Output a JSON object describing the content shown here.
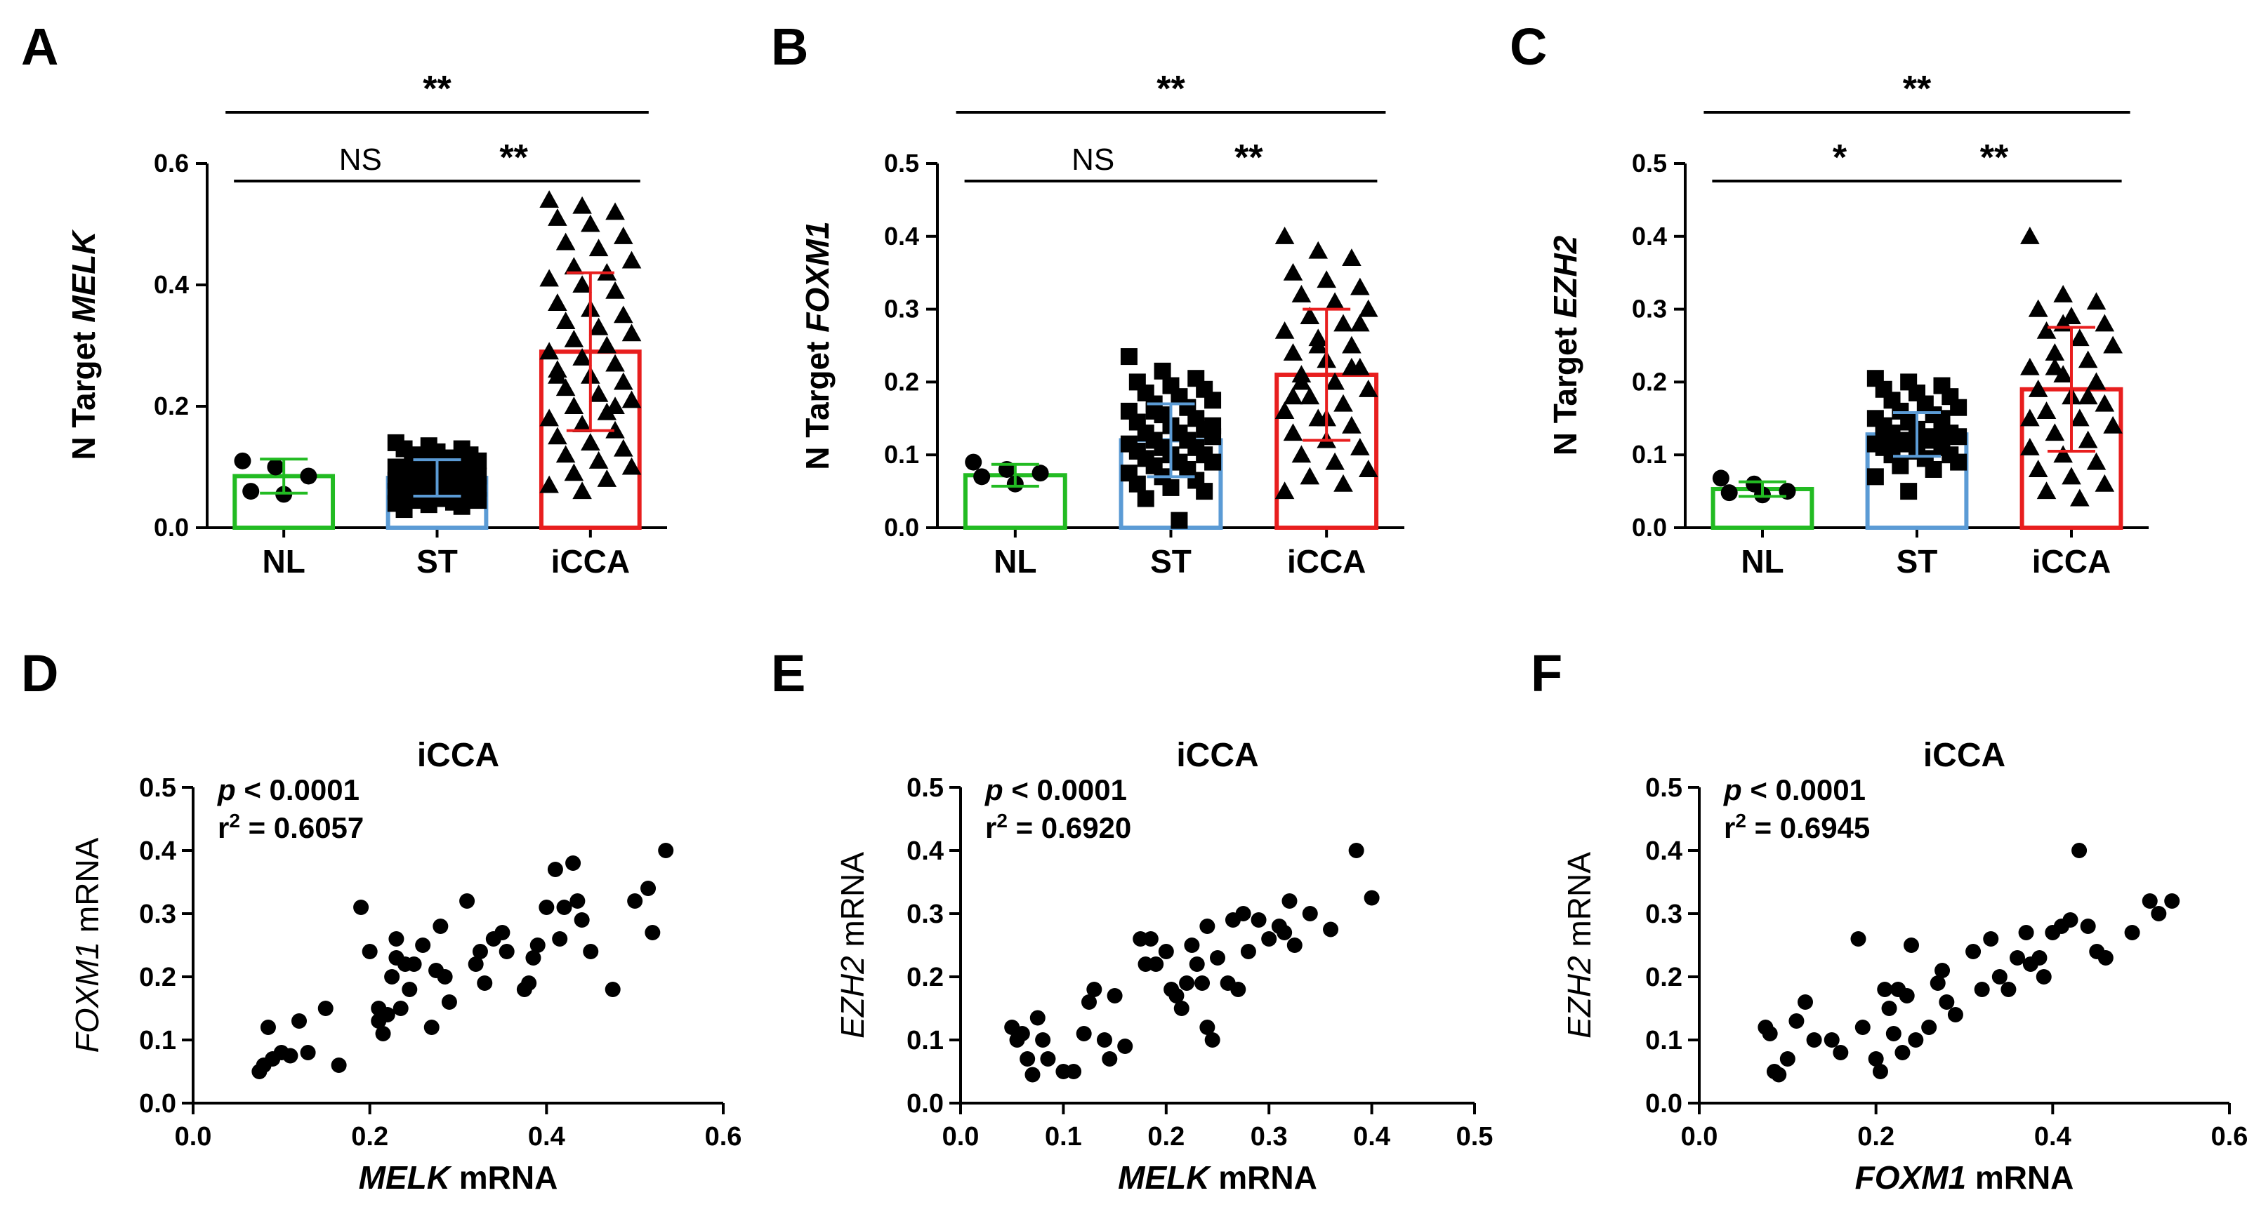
{
  "colors": {
    "NL": "#22bb22",
    "ST": "#5b9bd5",
    "iCCA": "#e81e1e",
    "ink": "#000000"
  },
  "chart_data": [
    {
      "id": "A",
      "type": "bar",
      "panel_label": "A",
      "ylabel": "N Target ",
      "ylabel_gene": "MELK",
      "categories": [
        "NL",
        "ST",
        "iCCA"
      ],
      "ylim": [
        0,
        0.6
      ],
      "yticks": [
        0.0,
        0.2,
        0.4,
        0.6
      ],
      "ytick_labels": [
        "0.0",
        "0.2",
        "0.4",
        "0.6"
      ],
      "means": [
        0.085,
        0.082,
        0.29
      ],
      "sd": [
        0.028,
        0.03,
        0.13
      ],
      "points": [
        [
          0.11,
          0.1,
          0.085,
          0.06,
          0.055
        ],
        [
          0.14,
          0.135,
          0.13,
          0.13,
          0.125,
          0.12,
          0.12,
          0.115,
          0.11,
          0.11,
          0.105,
          0.1,
          0.1,
          0.095,
          0.095,
          0.09,
          0.09,
          0.088,
          0.085,
          0.085,
          0.082,
          0.08,
          0.078,
          0.075,
          0.075,
          0.072,
          0.07,
          0.07,
          0.068,
          0.065,
          0.065,
          0.062,
          0.06,
          0.06,
          0.058,
          0.055,
          0.055,
          0.052,
          0.05,
          0.05,
          0.048,
          0.045,
          0.045,
          0.042,
          0.04,
          0.038,
          0.035,
          0.03
        ],
        [
          0.54,
          0.53,
          0.52,
          0.51,
          0.5,
          0.48,
          0.47,
          0.46,
          0.44,
          0.43,
          0.42,
          0.41,
          0.4,
          0.39,
          0.37,
          0.36,
          0.35,
          0.34,
          0.33,
          0.32,
          0.31,
          0.3,
          0.29,
          0.28,
          0.27,
          0.26,
          0.25,
          0.24,
          0.23,
          0.22,
          0.21,
          0.2,
          0.19,
          0.18,
          0.17,
          0.16,
          0.15,
          0.14,
          0.13,
          0.12,
          0.11,
          0.1,
          0.09,
          0.08,
          0.07,
          0.06,
          0.2,
          0.25
        ]
      ],
      "markers": [
        "circle",
        "square",
        "triangle"
      ],
      "brackets": [
        {
          "from": 0,
          "to": 1,
          "label": "NS",
          "level": 1
        },
        {
          "from": 1,
          "to": 2,
          "label": "**",
          "level": 1
        },
        {
          "from": 0,
          "to": 2,
          "label": "**",
          "level": 2
        }
      ]
    },
    {
      "id": "B",
      "type": "bar",
      "panel_label": "B",
      "ylabel": "N Target ",
      "ylabel_gene": "FOXM1",
      "categories": [
        "NL",
        "ST",
        "iCCA"
      ],
      "ylim": [
        0,
        0.5
      ],
      "yticks": [
        0.0,
        0.1,
        0.2,
        0.3,
        0.4,
        0.5
      ],
      "ytick_labels": [
        "0.0",
        "0.1",
        "0.2",
        "0.3",
        "0.4",
        "0.5"
      ],
      "means": [
        0.072,
        0.12,
        0.21
      ],
      "sd": [
        0.015,
        0.05,
        0.09
      ],
      "points": [
        [
          0.09,
          0.08,
          0.075,
          0.07,
          0.06
        ],
        [
          0.235,
          0.215,
          0.205,
          0.2,
          0.195,
          0.19,
          0.185,
          0.18,
          0.175,
          0.17,
          0.165,
          0.16,
          0.155,
          0.15,
          0.145,
          0.14,
          0.135,
          0.13,
          0.13,
          0.125,
          0.12,
          0.12,
          0.115,
          0.11,
          0.11,
          0.105,
          0.1,
          0.1,
          0.095,
          0.09,
          0.09,
          0.085,
          0.08,
          0.075,
          0.07,
          0.065,
          0.06,
          0.055,
          0.05,
          0.04,
          0.01,
          0.14,
          0.16
        ],
        [
          0.4,
          0.38,
          0.37,
          0.35,
          0.34,
          0.33,
          0.32,
          0.31,
          0.3,
          0.29,
          0.28,
          0.27,
          0.26,
          0.25,
          0.24,
          0.23,
          0.22,
          0.21,
          0.2,
          0.19,
          0.18,
          0.17,
          0.16,
          0.15,
          0.14,
          0.13,
          0.12,
          0.11,
          0.1,
          0.09,
          0.08,
          0.07,
          0.06,
          0.05,
          0.25,
          0.22,
          0.18,
          0.15,
          0.28,
          0.2
        ]
      ],
      "markers": [
        "circle",
        "square",
        "triangle"
      ],
      "brackets": [
        {
          "from": 0,
          "to": 1,
          "label": "NS",
          "level": 1
        },
        {
          "from": 1,
          "to": 2,
          "label": "**",
          "level": 1
        },
        {
          "from": 0,
          "to": 2,
          "label": "**",
          "level": 2
        }
      ]
    },
    {
      "id": "C",
      "type": "bar",
      "panel_label": "C",
      "ylabel": "N Target ",
      "ylabel_gene": "EZH2",
      "categories": [
        "NL",
        "ST",
        "iCCA"
      ],
      "ylim": [
        0,
        0.5
      ],
      "yticks": [
        0.0,
        0.1,
        0.2,
        0.3,
        0.4,
        0.5
      ],
      "ytick_labels": [
        "0.0",
        "0.1",
        "0.2",
        "0.3",
        "0.4",
        "0.5"
      ],
      "means": [
        0.053,
        0.128,
        0.19
      ],
      "sd": [
        0.01,
        0.03,
        0.085
      ],
      "points": [
        [
          0.068,
          0.06,
          0.05,
          0.048,
          0.045
        ],
        [
          0.205,
          0.2,
          0.195,
          0.19,
          0.185,
          0.18,
          0.175,
          0.17,
          0.165,
          0.16,
          0.155,
          0.15,
          0.145,
          0.14,
          0.14,
          0.135,
          0.13,
          0.13,
          0.125,
          0.125,
          0.12,
          0.12,
          0.115,
          0.115,
          0.11,
          0.11,
          0.105,
          0.1,
          0.1,
          0.095,
          0.09,
          0.085,
          0.08,
          0.07,
          0.05,
          0.15,
          0.13
        ],
        [
          0.4,
          0.32,
          0.31,
          0.3,
          0.29,
          0.28,
          0.27,
          0.26,
          0.25,
          0.24,
          0.23,
          0.22,
          0.21,
          0.2,
          0.19,
          0.18,
          0.17,
          0.16,
          0.15,
          0.14,
          0.13,
          0.12,
          0.11,
          0.1,
          0.09,
          0.08,
          0.07,
          0.06,
          0.05,
          0.04,
          0.25,
          0.22,
          0.18,
          0.15,
          0.28,
          0.2,
          0.3
        ]
      ],
      "markers": [
        "circle",
        "square",
        "triangle"
      ],
      "brackets": [
        {
          "from": 0,
          "to": 1,
          "label": "*",
          "level": 1
        },
        {
          "from": 1,
          "to": 2,
          "label": "**",
          "level": 1
        },
        {
          "from": 0,
          "to": 2,
          "label": "**",
          "level": 2
        }
      ]
    },
    {
      "id": "D",
      "type": "scatter",
      "panel_label": "D",
      "title": "iCCA",
      "stat_p_letter": "p",
      "stat_p_rest": " < 0.0001",
      "stat_r_base": "r",
      "stat_r_sup": "2",
      "stat_r_rest": " = 0.6057",
      "xlabel_gene": "MELK",
      "xlabel_rest": " mRNA",
      "ylabel_gene": "FOXM1",
      "ylabel_rest": " mRNA",
      "xlim": [
        0,
        0.6
      ],
      "ylim": [
        0,
        0.5
      ],
      "xticks": [
        0.0,
        0.2,
        0.4,
        0.6
      ],
      "xtick_labels": [
        "0.0",
        "0.2",
        "0.4",
        "0.6"
      ],
      "yticks": [
        0.0,
        0.1,
        0.2,
        0.3,
        0.4,
        0.5
      ],
      "ytick_labels": [
        "0.0",
        "0.1",
        "0.2",
        "0.3",
        "0.4",
        "0.5"
      ],
      "points": [
        [
          0.075,
          0.05
        ],
        [
          0.08,
          0.06
        ],
        [
          0.09,
          0.07
        ],
        [
          0.085,
          0.12
        ],
        [
          0.1,
          0.08
        ],
        [
          0.11,
          0.075
        ],
        [
          0.12,
          0.13
        ],
        [
          0.13,
          0.08
        ],
        [
          0.15,
          0.15
        ],
        [
          0.165,
          0.06
        ],
        [
          0.19,
          0.31
        ],
        [
          0.2,
          0.24
        ],
        [
          0.21,
          0.15
        ],
        [
          0.21,
          0.13
        ],
        [
          0.215,
          0.11
        ],
        [
          0.22,
          0.14
        ],
        [
          0.225,
          0.2
        ],
        [
          0.23,
          0.26
        ],
        [
          0.23,
          0.23
        ],
        [
          0.235,
          0.15
        ],
        [
          0.24,
          0.22
        ],
        [
          0.245,
          0.18
        ],
        [
          0.25,
          0.22
        ],
        [
          0.26,
          0.25
        ],
        [
          0.27,
          0.12
        ],
        [
          0.275,
          0.21
        ],
        [
          0.28,
          0.28
        ],
        [
          0.285,
          0.2
        ],
        [
          0.29,
          0.16
        ],
        [
          0.31,
          0.32
        ],
        [
          0.32,
          0.22
        ],
        [
          0.325,
          0.24
        ],
        [
          0.33,
          0.19
        ],
        [
          0.34,
          0.26
        ],
        [
          0.35,
          0.27
        ],
        [
          0.355,
          0.24
        ],
        [
          0.375,
          0.18
        ],
        [
          0.38,
          0.19
        ],
        [
          0.385,
          0.23
        ],
        [
          0.39,
          0.25
        ],
        [
          0.4,
          0.31
        ],
        [
          0.41,
          0.37
        ],
        [
          0.415,
          0.26
        ],
        [
          0.42,
          0.31
        ],
        [
          0.43,
          0.38
        ],
        [
          0.435,
          0.32
        ],
        [
          0.44,
          0.29
        ],
        [
          0.45,
          0.24
        ],
        [
          0.475,
          0.18
        ],
        [
          0.5,
          0.32
        ],
        [
          0.515,
          0.34
        ],
        [
          0.52,
          0.27
        ],
        [
          0.535,
          0.4
        ]
      ]
    },
    {
      "id": "E",
      "type": "scatter",
      "panel_label": "E",
      "title": "iCCA",
      "stat_p_letter": "p",
      "stat_p_rest": " < 0.0001",
      "stat_r_base": "r",
      "stat_r_sup": "2",
      "stat_r_rest": " = 0.6920",
      "xlabel_gene": "MELK",
      "xlabel_rest": " mRNA",
      "ylabel_gene": "EZH2",
      "ylabel_rest": " mRNA",
      "xlim": [
        0,
        0.5
      ],
      "ylim": [
        0,
        0.5
      ],
      "xticks": [
        0.0,
        0.1,
        0.2,
        0.3,
        0.4,
        0.5
      ],
      "xtick_labels": [
        "0.0",
        "0.1",
        "0.2",
        "0.3",
        "0.4",
        "0.5"
      ],
      "yticks": [
        0.0,
        0.1,
        0.2,
        0.3,
        0.4,
        0.5
      ],
      "ytick_labels": [
        "0.0",
        "0.1",
        "0.2",
        "0.3",
        "0.4",
        "0.5"
      ],
      "points": [
        [
          0.05,
          0.12
        ],
        [
          0.055,
          0.1
        ],
        [
          0.06,
          0.11
        ],
        [
          0.065,
          0.07
        ],
        [
          0.07,
          0.045
        ],
        [
          0.075,
          0.135
        ],
        [
          0.08,
          0.1
        ],
        [
          0.085,
          0.07
        ],
        [
          0.1,
          0.05
        ],
        [
          0.11,
          0.05
        ],
        [
          0.12,
          0.11
        ],
        [
          0.125,
          0.16
        ],
        [
          0.13,
          0.18
        ],
        [
          0.14,
          0.1
        ],
        [
          0.145,
          0.07
        ],
        [
          0.15,
          0.17
        ],
        [
          0.16,
          0.09
        ],
        [
          0.175,
          0.26
        ],
        [
          0.18,
          0.22
        ],
        [
          0.185,
          0.26
        ],
        [
          0.19,
          0.22
        ],
        [
          0.2,
          0.24
        ],
        [
          0.205,
          0.18
        ],
        [
          0.21,
          0.17
        ],
        [
          0.215,
          0.15
        ],
        [
          0.22,
          0.19
        ],
        [
          0.225,
          0.25
        ],
        [
          0.23,
          0.22
        ],
        [
          0.235,
          0.19
        ],
        [
          0.24,
          0.12
        ],
        [
          0.24,
          0.28
        ],
        [
          0.245,
          0.1
        ],
        [
          0.25,
          0.23
        ],
        [
          0.26,
          0.19
        ],
        [
          0.265,
          0.29
        ],
        [
          0.27,
          0.18
        ],
        [
          0.275,
          0.3
        ],
        [
          0.28,
          0.24
        ],
        [
          0.29,
          0.29
        ],
        [
          0.3,
          0.26
        ],
        [
          0.31,
          0.28
        ],
        [
          0.315,
          0.27
        ],
        [
          0.32,
          0.32
        ],
        [
          0.325,
          0.25
        ],
        [
          0.34,
          0.3
        ],
        [
          0.36,
          0.275
        ],
        [
          0.385,
          0.4
        ],
        [
          0.4,
          0.325
        ]
      ]
    },
    {
      "id": "F",
      "type": "scatter",
      "panel_label": "F",
      "title": "iCCA",
      "stat_p_letter": "p",
      "stat_p_rest": " < 0.0001",
      "stat_r_base": "r",
      "stat_r_sup": "2",
      "stat_r_rest": " = 0.6945",
      "xlabel_gene": "FOXM1",
      "xlabel_rest": " mRNA",
      "ylabel_gene": "EZH2",
      "ylabel_rest": " mRNA",
      "xlim": [
        0,
        0.6
      ],
      "ylim": [
        0,
        0.5
      ],
      "xticks": [
        0.0,
        0.2,
        0.4,
        0.6
      ],
      "xtick_labels": [
        "0.0",
        "0.2",
        "0.4",
        "0.6"
      ],
      "yticks": [
        0.0,
        0.1,
        0.2,
        0.3,
        0.4,
        0.5
      ],
      "ytick_labels": [
        "0.0",
        "0.1",
        "0.2",
        "0.3",
        "0.4",
        "0.5"
      ],
      "points": [
        [
          0.075,
          0.12
        ],
        [
          0.08,
          0.11
        ],
        [
          0.085,
          0.05
        ],
        [
          0.09,
          0.045
        ],
        [
          0.1,
          0.07
        ],
        [
          0.11,
          0.13
        ],
        [
          0.12,
          0.16
        ],
        [
          0.13,
          0.1
        ],
        [
          0.15,
          0.1
        ],
        [
          0.16,
          0.08
        ],
        [
          0.18,
          0.26
        ],
        [
          0.185,
          0.12
        ],
        [
          0.2,
          0.07
        ],
        [
          0.205,
          0.05
        ],
        [
          0.21,
          0.18
        ],
        [
          0.215,
          0.15
        ],
        [
          0.22,
          0.11
        ],
        [
          0.225,
          0.18
        ],
        [
          0.23,
          0.08
        ],
        [
          0.235,
          0.17
        ],
        [
          0.24,
          0.25
        ],
        [
          0.245,
          0.1
        ],
        [
          0.26,
          0.12
        ],
        [
          0.27,
          0.19
        ],
        [
          0.275,
          0.21
        ],
        [
          0.28,
          0.16
        ],
        [
          0.29,
          0.14
        ],
        [
          0.31,
          0.24
        ],
        [
          0.32,
          0.18
        ],
        [
          0.33,
          0.26
        ],
        [
          0.34,
          0.2
        ],
        [
          0.35,
          0.18
        ],
        [
          0.36,
          0.23
        ],
        [
          0.37,
          0.27
        ],
        [
          0.375,
          0.22
        ],
        [
          0.385,
          0.23
        ],
        [
          0.39,
          0.2
        ],
        [
          0.4,
          0.27
        ],
        [
          0.41,
          0.28
        ],
        [
          0.42,
          0.29
        ],
        [
          0.43,
          0.4
        ],
        [
          0.44,
          0.28
        ],
        [
          0.45,
          0.24
        ],
        [
          0.46,
          0.23
        ],
        [
          0.49,
          0.27
        ],
        [
          0.51,
          0.32
        ],
        [
          0.52,
          0.3
        ],
        [
          0.535,
          0.32
        ]
      ]
    }
  ]
}
